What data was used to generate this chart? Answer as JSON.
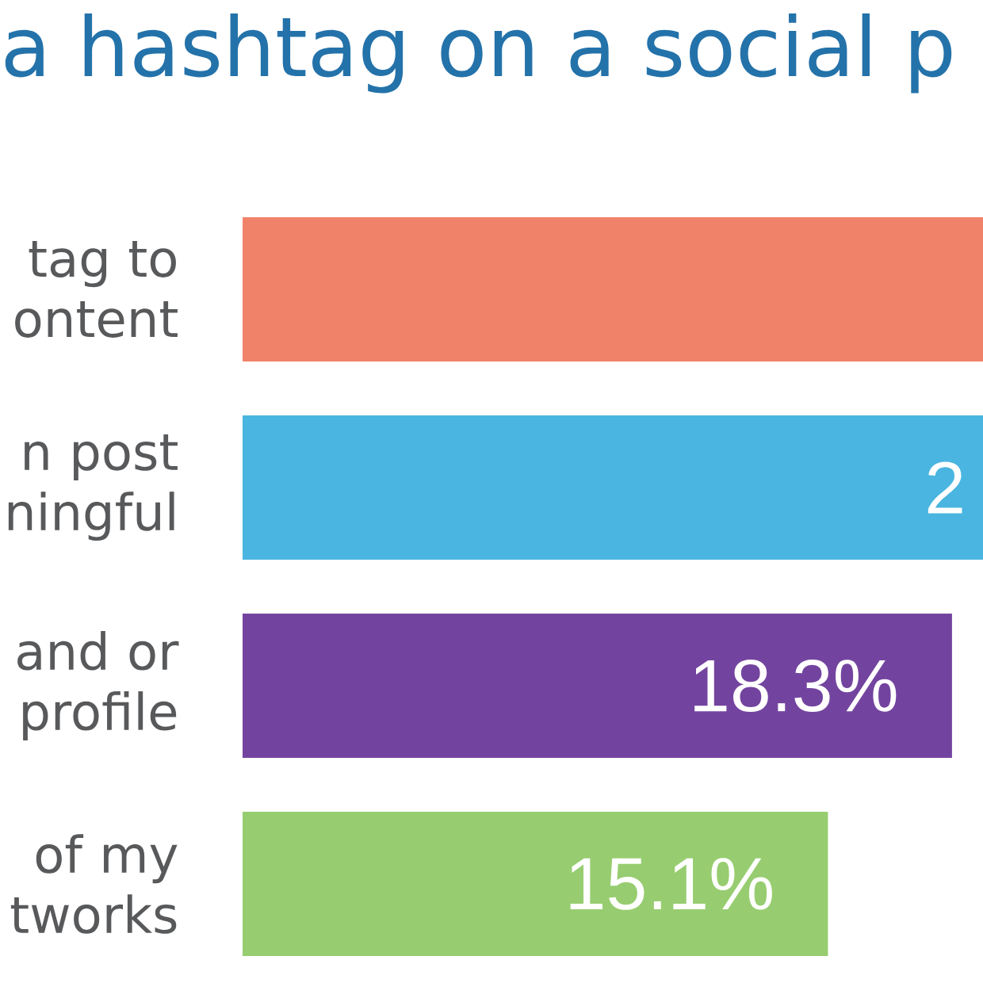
{
  "chart_data": {
    "type": "bar",
    "orientation": "horizontal",
    "title": "a hashtag on a social p",
    "categories": [
      "tag to ontent",
      "n post ningful",
      "and or profile",
      "of my tworks"
    ],
    "values": [
      19.1,
      19.1,
      18.3,
      15.1
    ],
    "colors": [
      "#f1826a",
      "#4ab5e0",
      "#73449f",
      "#97cd70"
    ],
    "xlim": [
      0,
      19.1
    ],
    "value_labels": [
      null,
      null,
      "18.3%",
      "15.1%"
    ],
    "tick_labels": "y",
    "annotations": [
      {
        "text": "2",
        "x": 19.1,
        "y": "n post ningful"
      }
    ]
  }
}
